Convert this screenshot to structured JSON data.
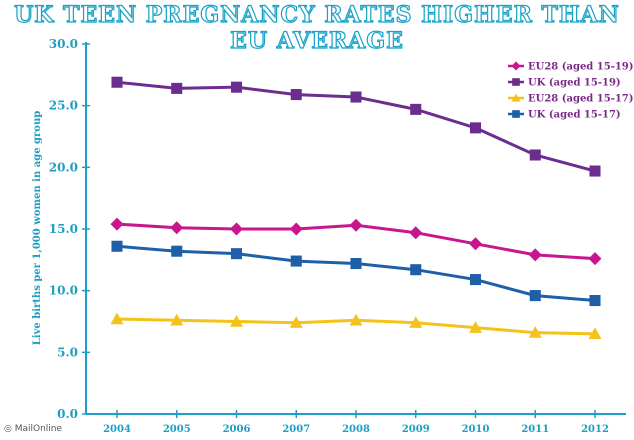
{
  "credit": "◎ MailOnline",
  "chart_data": {
    "type": "line",
    "title": "UK TEEN PREGNANCY RATES HIGHER THAN EU AVERAGE",
    "ylabel": "Live births per 1,000 women in age group",
    "xlabel": "",
    "x": [
      "2004",
      "2005",
      "2006",
      "2007",
      "2008",
      "2009",
      "2010",
      "2011",
      "2012"
    ],
    "ylim": [
      0,
      30
    ],
    "yticks": [
      "0.0",
      "5.0",
      "10.0",
      "15.0",
      "20.0",
      "25.0",
      "30.0"
    ],
    "grid": false,
    "legend_position": "top-right",
    "series": [
      {
        "name": "EU28 (aged 15-19)",
        "color": "#c8178e",
        "marker": "diamond",
        "values": [
          15.4,
          15.1,
          15.0,
          15.0,
          15.3,
          14.7,
          13.8,
          12.9,
          12.6
        ]
      },
      {
        "name": "UK (aged 15-19)",
        "color": "#6b2d8f",
        "marker": "square",
        "values": [
          26.9,
          26.4,
          26.5,
          25.9,
          25.7,
          24.7,
          23.2,
          21.0,
          19.7
        ]
      },
      {
        "name": "EU28 (aged 15-17)",
        "color": "#f5c21b",
        "marker": "triangle",
        "values": [
          7.7,
          7.6,
          7.5,
          7.4,
          7.6,
          7.4,
          7.0,
          6.6,
          6.5
        ]
      },
      {
        "name": "UK (aged 15-17)",
        "color": "#1f5fa8",
        "marker": "square",
        "values": [
          13.6,
          13.2,
          13.0,
          12.4,
          12.2,
          11.7,
          10.9,
          9.6,
          9.2
        ]
      }
    ],
    "axis_color": "#1c9fc4"
  }
}
